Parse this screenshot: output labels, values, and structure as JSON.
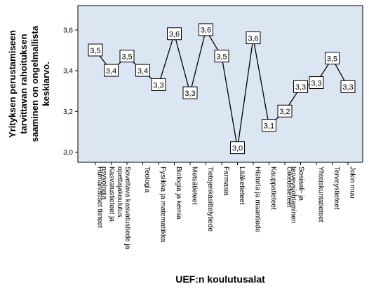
{
  "chart_data": {
    "type": "line",
    "categories": [
      "Humanistiset tieteet",
      "Kasvatustieteet ja psykologia",
      "Soveltava kasvatustiede ja opettajakoulutus",
      "Teologia",
      "Fysiikka ja matematiikka",
      "Biologia ja kemia",
      "Metsätieteet",
      "Tietojenkäsittelytiede",
      "Farmasia",
      "Lääketieteet",
      "Historia ja maantiede",
      "Kauppatieteet",
      "Oikeustieteet",
      "Sosiaali- ja terveysjohtaminen",
      "Yhteiskuntatieteet",
      "Terveystieteet",
      "Jokin muu"
    ],
    "values": [
      3.5,
      3.4,
      3.47,
      3.4,
      3.33,
      3.58,
      3.29,
      3.6,
      3.47,
      3.02,
      3.56,
      3.13,
      3.2,
      3.32,
      3.34,
      3.46,
      3.32
    ],
    "data_labels": [
      "3,5",
      "3,4",
      "3,5",
      "3,4",
      "3,3",
      "3,6",
      "3,3",
      "3,6",
      "3,5",
      "3,0",
      "3,6",
      "3,1",
      "3,2",
      "3,3",
      "3,3",
      "3,5",
      "3,3"
    ],
    "ylabel_lines": [
      "Yrityksen perustamiseen",
      "tarvittavan rahoituksen",
      "saaminen on ongelmallista",
      "keskiarvo."
    ],
    "xlabel": "UEF:n koulutusalat",
    "ylim": [
      2.95,
      3.72
    ],
    "y_ticks": [
      3.0,
      3.2,
      3.4,
      3.6
    ],
    "y_tick_labels": [
      "3,0",
      "3,2",
      "3,4",
      "3,6"
    ],
    "grid": false,
    "colors": {
      "plot_background": "#dce6f2",
      "line": "#000000",
      "label_box": "#ffffff"
    }
  }
}
